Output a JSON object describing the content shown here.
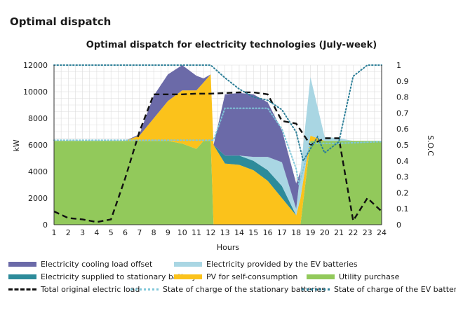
{
  "page": {
    "heading": "Optimal dispatch"
  },
  "chart_data": {
    "type": "area",
    "title": "Optimal dispatch for electricity technologies (July-week)",
    "xlabel": "Hours",
    "ylabel": "kW",
    "y2label": "S.O.C",
    "xlim": [
      1,
      24
    ],
    "ylim": [
      0,
      12000
    ],
    "y2lim": [
      0,
      1
    ],
    "x_ticks": [
      "1",
      "2",
      "3",
      "4",
      "5",
      "6",
      "7",
      "8",
      "9",
      "10",
      "11",
      "12",
      "13",
      "14",
      "15",
      "16",
      "17",
      "18",
      "19",
      "20",
      "21",
      "22",
      "23",
      "24"
    ],
    "y_ticks": [
      "0",
      "2000",
      "4000",
      "6000",
      "8000",
      "10000",
      "12000"
    ],
    "y2_ticks": [
      "0",
      "0.1",
      "0.2",
      "0.3",
      "0.4",
      "0.5",
      "0.6",
      "0.7",
      "0.8",
      "0.9",
      "1"
    ],
    "grid": true,
    "x": [
      1,
      6,
      7,
      8,
      9,
      10,
      11,
      11.5,
      12,
      12.2,
      13,
      14,
      15,
      16,
      17,
      18,
      18.3,
      19,
      20,
      21,
      22,
      24
    ],
    "series": [
      {
        "name": "Utility purchase",
        "color": "#92c95b",
        "stack": true,
        "values": [
          6300,
          6300,
          6300,
          6300,
          6300,
          6100,
          5700,
          6300,
          6300,
          0,
          0,
          0,
          0,
          0,
          0,
          0,
          0,
          6300,
          6300,
          6300,
          6300,
          6300
        ]
      },
      {
        "name": "PV for self-consumption",
        "color": "#fbc21b",
        "stack": true,
        "values": [
          0,
          0,
          400,
          1700,
          3000,
          4000,
          4400,
          4400,
          5000,
          6000,
          4600,
          4500,
          4100,
          3300,
          2000,
          700,
          2000,
          400,
          0,
          0,
          0,
          0
        ]
      },
      {
        "name": "Electricity supplied to stationary battery",
        "color": "#2d8b9a",
        "stack": true,
        "values": [
          0,
          0,
          0,
          0,
          0,
          0,
          0,
          0,
          0,
          0,
          600,
          700,
          700,
          800,
          900,
          0,
          0,
          0,
          0,
          0,
          0,
          0
        ]
      },
      {
        "name": "Electricity provided by the EV batteries",
        "color": "#a9d6e3",
        "stack": true,
        "values": [
          0,
          0,
          0,
          0,
          0,
          0,
          0,
          0,
          0,
          0,
          0,
          0,
          300,
          1000,
          1800,
          500,
          2000,
          4400,
          300,
          200,
          0,
          0
        ]
      },
      {
        "name": "Electricity cooling load offset",
        "color": "#6b6aa8",
        "stack": true,
        "values": [
          0,
          0,
          100,
          1700,
          2000,
          1900,
          1100,
          300,
          0,
          0,
          4600,
          4700,
          4700,
          4100,
          2400,
          1900,
          0,
          0,
          0,
          0,
          0,
          0
        ]
      },
      {
        "name": "Total original electric load",
        "color": "#111111",
        "dash": "long",
        "axis": "left",
        "x": [
          1,
          2,
          3,
          4,
          5,
          6,
          7,
          8,
          9,
          10,
          11,
          12,
          13,
          14,
          15,
          16,
          17,
          18,
          19,
          20,
          21,
          22,
          23,
          24
        ],
        "values": [
          1000,
          500,
          400,
          200,
          400,
          3500,
          7000,
          9800,
          9800,
          9800,
          9850,
          9850,
          9900,
          9950,
          9950,
          9800,
          7800,
          7600,
          6000,
          6500,
          6500,
          300,
          2000,
          1000
        ]
      },
      {
        "name": "State of charge of the stationary batteries",
        "color": "#7fc7d9",
        "dash": "dot",
        "axis": "right",
        "x": [
          1,
          12.2,
          13,
          14,
          15,
          16,
          17,
          18,
          18.2,
          19,
          20,
          21,
          24
        ],
        "values": [
          0.53,
          0.53,
          0.73,
          0.73,
          0.73,
          0.73,
          0.6,
          0.35,
          0.25,
          0.51,
          0.51,
          0.51,
          0.52
        ]
      },
      {
        "name": "State of charge of the EV batteries",
        "color": "#2d7f98",
        "dash": "dot",
        "axis": "right",
        "x": [
          1,
          12,
          13,
          14,
          15,
          16,
          17,
          18,
          18.5,
          19.5,
          20,
          21,
          22,
          23,
          24
        ],
        "values": [
          1.0,
          1.0,
          0.92,
          0.85,
          0.8,
          0.78,
          0.72,
          0.58,
          0.4,
          0.55,
          0.45,
          0.52,
          0.93,
          1.0,
          1.0
        ]
      }
    ],
    "legend": {
      "placement": "bottom",
      "rows": [
        [
          "Electricity cooling load offset",
          "Electricity provided by the EV batteries"
        ],
        [
          "Electricity supplied to stationary battery",
          "PV for self-consumption",
          "Utility purchase"
        ],
        [
          "Total original electric load",
          "State of charge of the stationary batteries",
          "State of charge of the EV batteries"
        ]
      ]
    }
  }
}
